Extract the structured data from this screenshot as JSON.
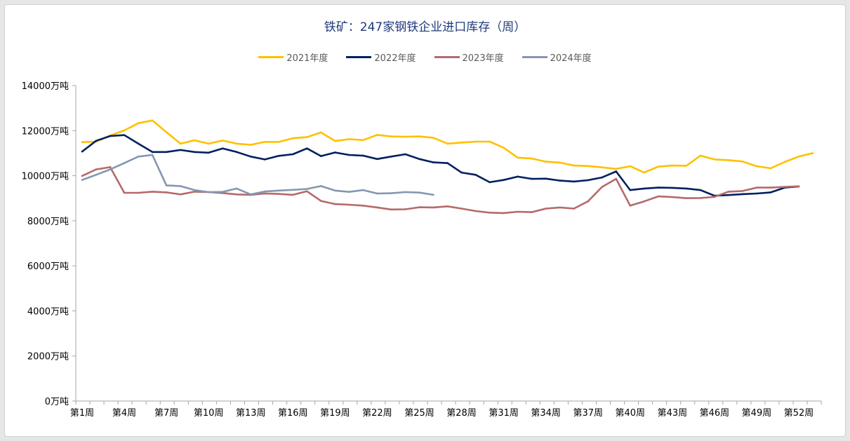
{
  "chart_data": {
    "type": "line",
    "title": "铁矿：247家钢铁企业进口库存（周）",
    "xlabel": "",
    "ylabel": "",
    "ylim": [
      0,
      14000
    ],
    "y_ticks": [
      0,
      2000,
      4000,
      6000,
      8000,
      10000,
      12000,
      14000
    ],
    "y_tick_unit": "万吨",
    "x_tick_labels": [
      "第1周",
      "第4周",
      "第7周",
      "第10周",
      "第13周",
      "第16周",
      "第19周",
      "第22周",
      "第25周",
      "第28周",
      "第31周",
      "第34周",
      "第37周",
      "第40周",
      "第43周",
      "第46周",
      "第49周",
      "第52周"
    ],
    "x_tick_weeks": [
      1,
      4,
      7,
      10,
      13,
      16,
      19,
      22,
      25,
      28,
      31,
      34,
      37,
      40,
      43,
      46,
      49,
      52
    ],
    "grid": false,
    "legend_position": "top",
    "series": [
      {
        "name": "2021年度",
        "color": "#FFC000",
        "values": [
          11490,
          11510,
          11780,
          12010,
          12330,
          12450,
          11930,
          11420,
          11570,
          11420,
          11560,
          11420,
          11370,
          11500,
          11500,
          11660,
          11710,
          11920,
          11540,
          11620,
          11580,
          11810,
          11740,
          11730,
          11740,
          11680,
          11420,
          11470,
          11510,
          11510,
          11240,
          10800,
          10760,
          10620,
          10580,
          10450,
          10430,
          10370,
          10300,
          10420,
          10140,
          10400,
          10450,
          10440,
          10890,
          10720,
          10690,
          10630,
          10420,
          10330,
          10610,
          10850,
          11000
        ]
      },
      {
        "name": "2022年度",
        "color": "#002060",
        "values": [
          11070,
          11550,
          11760,
          11800,
          11420,
          11050,
          11050,
          11140,
          11050,
          11020,
          11210,
          11050,
          10850,
          10720,
          10880,
          10950,
          11210,
          10870,
          11030,
          10920,
          10890,
          10740,
          10850,
          10950,
          10740,
          10590,
          10560,
          10140,
          10040,
          9710,
          9810,
          9960,
          9860,
          9870,
          9780,
          9740,
          9800,
          9920,
          10190,
          9360,
          9430,
          9470,
          9460,
          9430,
          9360,
          9110,
          9140,
          9180,
          9210,
          9260,
          9470,
          9520
        ]
      },
      {
        "name": "2023年度",
        "color": "#B56A6A",
        "values": [
          9990,
          10280,
          10380,
          9240,
          9240,
          9290,
          9260,
          9170,
          9290,
          9270,
          9230,
          9170,
          9150,
          9210,
          9190,
          9150,
          9310,
          8880,
          8740,
          8710,
          8670,
          8590,
          8500,
          8510,
          8600,
          8590,
          8640,
          8540,
          8430,
          8360,
          8340,
          8400,
          8380,
          8540,
          8590,
          8540,
          8860,
          9500,
          9860,
          8670,
          8860,
          9080,
          9050,
          9000,
          9010,
          9060,
          9290,
          9320,
          9470,
          9470,
          9500,
          9530
        ]
      },
      {
        "name": "2024年度",
        "color": "#8497B0",
        "values": [
          9810,
          10040,
          10280,
          10560,
          10850,
          10920,
          9570,
          9540,
          9360,
          9270,
          9280,
          9430,
          9170,
          9300,
          9340,
          9370,
          9410,
          9540,
          9340,
          9280,
          9360,
          9210,
          9220,
          9270,
          9250,
          9150
        ]
      }
    ]
  }
}
